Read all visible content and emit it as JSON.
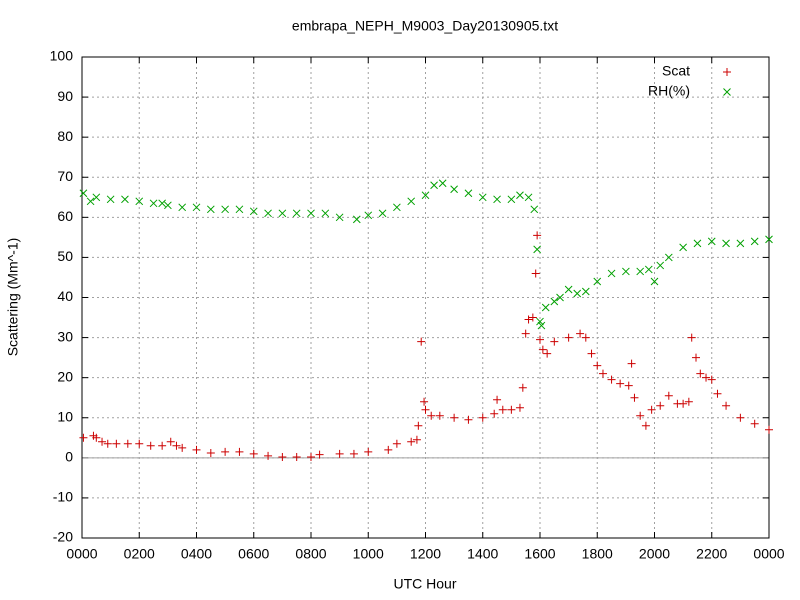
{
  "chart_data": {
    "type": "scatter",
    "title": "embrapa_NEPH_M9003_Day20130905.txt",
    "x_label": "UTC Hour",
    "y_label": "Scattering (Mm^-1)",
    "xlim": [
      0,
      24
    ],
    "ylim": [
      -20,
      100
    ],
    "xticks": [
      {
        "value": 0,
        "label": "0000"
      },
      {
        "value": 2,
        "label": "0200"
      },
      {
        "value": 4,
        "label": "0400"
      },
      {
        "value": 6,
        "label": "0600"
      },
      {
        "value": 8,
        "label": "0800"
      },
      {
        "value": 10,
        "label": "1000"
      },
      {
        "value": 12,
        "label": "1200"
      },
      {
        "value": 14,
        "label": "1400"
      },
      {
        "value": 16,
        "label": "1600"
      },
      {
        "value": 18,
        "label": "1800"
      },
      {
        "value": 20,
        "label": "2000"
      },
      {
        "value": 22,
        "label": "2200"
      },
      {
        "value": 24,
        "label": "0000"
      }
    ],
    "yticks": [
      -20,
      -10,
      0,
      10,
      20,
      30,
      40,
      50,
      60,
      70,
      80,
      90,
      100
    ],
    "grid": true,
    "legend": "top-right",
    "series": [
      {
        "name": "Scat",
        "color": "#cc0000",
        "marker": "+",
        "x": [
          0.05,
          0.4,
          0.5,
          0.7,
          0.9,
          1.2,
          1.6,
          2.0,
          2.4,
          2.8,
          3.1,
          3.3,
          3.5,
          4.0,
          4.5,
          5.0,
          5.5,
          6.0,
          6.5,
          7.0,
          7.5,
          8.0,
          8.3,
          9.0,
          9.5,
          10.0,
          10.7,
          11.0,
          11.5,
          11.7,
          11.75,
          11.85,
          11.95,
          12.0,
          12.2,
          12.5,
          13.0,
          13.5,
          14.0,
          14.4,
          14.5,
          14.7,
          15.0,
          15.3,
          15.4,
          15.5,
          15.6,
          15.75,
          15.85,
          15.9,
          16.0,
          16.1,
          16.25,
          16.5,
          17.0,
          17.4,
          17.6,
          17.8,
          18.0,
          18.2,
          18.5,
          18.8,
          19.1,
          19.2,
          19.3,
          19.5,
          19.7,
          19.9,
          20.2,
          20.5,
          20.8,
          21.0,
          21.2,
          21.3,
          21.45,
          21.6,
          21.8,
          22.0,
          22.2,
          22.5,
          23.0,
          23.5,
          24.0
        ],
        "values": [
          5,
          5.5,
          5,
          4,
          3.5,
          3.5,
          3.5,
          3.5,
          3,
          3,
          4,
          3,
          2.5,
          2,
          1.2,
          1.5,
          1.5,
          1,
          0.5,
          0.2,
          0.2,
          0.2,
          0.8,
          1,
          1,
          1.5,
          2,
          3.5,
          4,
          4.5,
          8,
          29,
          14,
          12,
          10.5,
          10.5,
          10,
          9.5,
          10,
          11,
          14.5,
          12,
          12,
          12.5,
          17.5,
          31,
          34.5,
          35,
          46,
          55.5,
          29.5,
          27,
          26,
          29,
          30,
          31,
          30,
          26,
          23,
          21,
          19.5,
          18.5,
          18,
          23.5,
          15,
          10.5,
          8,
          12,
          13,
          15.5,
          13.5,
          13.5,
          14,
          30,
          25,
          21,
          20,
          19.5,
          16,
          13,
          10,
          8.5,
          7
        ]
      },
      {
        "name": "RH(%)",
        "color": "#00a000",
        "marker": "x",
        "x": [
          0.05,
          0.3,
          0.5,
          1.0,
          1.5,
          2.0,
          2.5,
          2.8,
          3.0,
          3.5,
          4.0,
          4.5,
          5.0,
          5.5,
          6.0,
          6.5,
          7.0,
          7.5,
          8.0,
          8.5,
          9.0,
          9.6,
          10.0,
          10.5,
          11.0,
          11.5,
          12.0,
          12.3,
          12.6,
          13.0,
          13.5,
          14.0,
          14.5,
          15.0,
          15.3,
          15.6,
          15.8,
          15.9,
          16.0,
          16.05,
          16.2,
          16.5,
          16.7,
          17.0,
          17.3,
          17.6,
          18.0,
          18.5,
          19.0,
          19.5,
          19.8,
          20.0,
          20.2,
          20.5,
          21.0,
          21.5,
          22.0,
          22.5,
          23.0,
          23.5,
          24.0
        ],
        "values": [
          66,
          64,
          65,
          64.5,
          64.5,
          64,
          63.5,
          63.5,
          63,
          62.5,
          62.5,
          62,
          62,
          62,
          61.5,
          61,
          61,
          61,
          61,
          61,
          60,
          59.5,
          60.5,
          61,
          62.5,
          64,
          65.5,
          68,
          68.5,
          67,
          66,
          65,
          64.5,
          64.5,
          65.5,
          65,
          62,
          52,
          34,
          33,
          37.5,
          39,
          40,
          42,
          41,
          41.5,
          44,
          46,
          46.5,
          46.5,
          47,
          44,
          48,
          50,
          52.5,
          53.5,
          54,
          53.5,
          53.5,
          54,
          54.5
        ]
      }
    ]
  }
}
